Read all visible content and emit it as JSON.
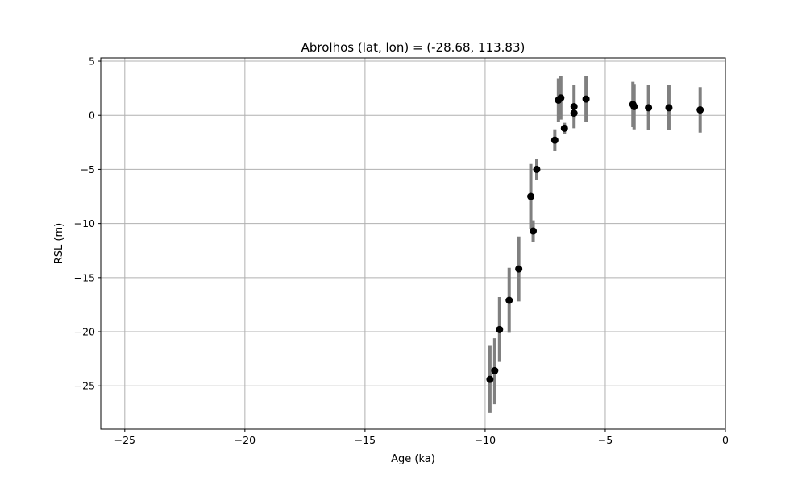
{
  "chart_data": {
    "type": "scatter",
    "title": "Abrolhos (lat, lon) = (-28.68, 113.83)",
    "xlabel": "Age (ka)",
    "ylabel": "RSL (m)",
    "xlim": [
      -26,
      0
    ],
    "ylim": [
      -29,
      5.3
    ],
    "xticks": [
      -25,
      -20,
      -15,
      -10,
      -5,
      0
    ],
    "yticks": [
      5,
      0,
      -5,
      -10,
      -15,
      -20,
      -25
    ],
    "xtick_labels": [
      "−25",
      "−20",
      "−15",
      "−10",
      "−5",
      "0"
    ],
    "ytick_labels": [
      "5",
      "0",
      "−5",
      "−10",
      "−15",
      "−20",
      "−25"
    ],
    "grid": true,
    "marker_color": "#000000",
    "errorbar_color": "#808080",
    "points": [
      {
        "x": -9.8,
        "y": -24.4,
        "ylo": -27.5,
        "yhi": -21.3
      },
      {
        "x": -9.6,
        "y": -23.6,
        "ylo": -26.7,
        "yhi": -20.6
      },
      {
        "x": -9.4,
        "y": -19.8,
        "ylo": -22.8,
        "yhi": -16.8
      },
      {
        "x": -9.0,
        "y": -17.1,
        "ylo": -20.1,
        "yhi": -14.1
      },
      {
        "x": -8.6,
        "y": -14.2,
        "ylo": -17.2,
        "yhi": -11.2
      },
      {
        "x": -8.1,
        "y": -7.5,
        "ylo": -10.5,
        "yhi": -4.5
      },
      {
        "x": -8.0,
        "y": -10.7,
        "ylo": -11.7,
        "yhi": -9.7
      },
      {
        "x": -7.85,
        "y": -5.0,
        "ylo": -6.0,
        "yhi": -4.0
      },
      {
        "x": -7.1,
        "y": -2.3,
        "ylo": -3.3,
        "yhi": -1.3
      },
      {
        "x": -6.95,
        "y": 1.4,
        "ylo": -0.6,
        "yhi": 3.4
      },
      {
        "x": -6.85,
        "y": 1.6,
        "ylo": -0.4,
        "yhi": 3.6
      },
      {
        "x": -6.7,
        "y": -1.2,
        "ylo": -1.7,
        "yhi": -0.7
      },
      {
        "x": -6.3,
        "y": 0.8,
        "ylo": -1.2,
        "yhi": 2.8
      },
      {
        "x": -6.3,
        "y": 0.2,
        "ylo": -0.3,
        "yhi": 0.7
      },
      {
        "x": -5.8,
        "y": 1.5,
        "ylo": -0.6,
        "yhi": 3.6
      },
      {
        "x": -3.85,
        "y": 1.0,
        "ylo": -1.1,
        "yhi": 3.1
      },
      {
        "x": -3.8,
        "y": 0.8,
        "ylo": -1.3,
        "yhi": 2.9
      },
      {
        "x": -3.2,
        "y": 0.7,
        "ylo": -1.4,
        "yhi": 2.8
      },
      {
        "x": -2.35,
        "y": 0.7,
        "ylo": -1.4,
        "yhi": 2.8
      },
      {
        "x": -1.05,
        "y": 0.5,
        "ylo": -1.6,
        "yhi": 2.6
      }
    ]
  }
}
